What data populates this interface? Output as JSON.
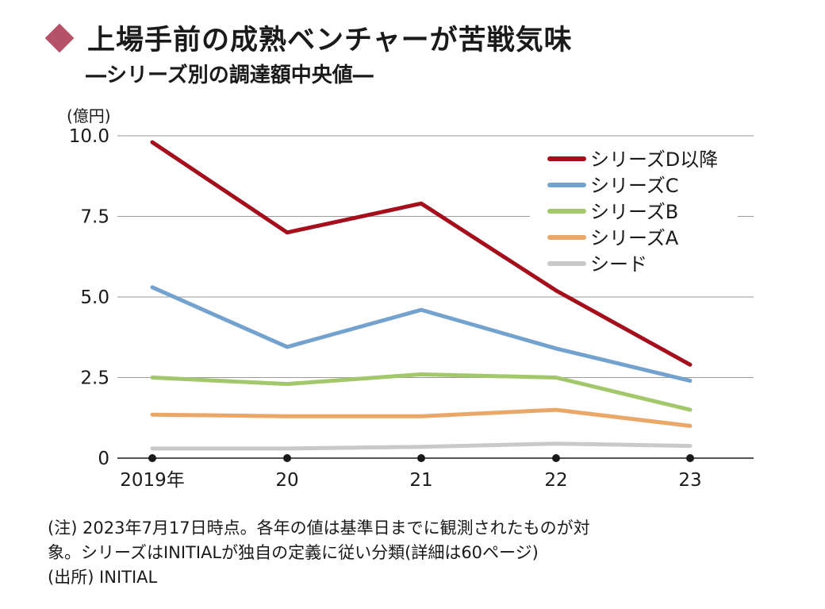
{
  "header": {
    "title": "上場手前の成熟ベンチャーが苦戦気味",
    "subtitle": "―シリーズ別の調達額中央値―"
  },
  "unit_label": "(億円)",
  "footnotes": {
    "note_line1": "(注) 2023年7月17日時点。各年の値は基準日までに観測されたものが対",
    "note_line2": "象。シリーズはINITIALが独自の定義に従い分類(詳細は60ページ)",
    "source": "(出所) INITIAL"
  },
  "chart_data": {
    "type": "line",
    "x": [
      "2019年",
      "20",
      "21",
      "22",
      "23"
    ],
    "ylim": [
      0,
      10
    ],
    "yticks": [
      "0",
      "2.5",
      "5.0",
      "7.5",
      "10.0"
    ],
    "ytick_values": [
      0,
      2.5,
      5,
      7.5,
      10
    ],
    "grid": true,
    "legend": "top-right",
    "series": [
      {
        "name": "シリーズD以降",
        "color": "#a50f1c",
        "values": [
          9.8,
          7.0,
          7.9,
          5.2,
          2.9
        ]
      },
      {
        "name": "シリーズC",
        "color": "#74a2cf",
        "values": [
          5.3,
          3.45,
          4.6,
          3.4,
          2.4
        ]
      },
      {
        "name": "シリーズB",
        "color": "#a3c76b",
        "values": [
          2.5,
          2.3,
          2.6,
          2.5,
          1.5
        ]
      },
      {
        "name": "シリーズA",
        "color": "#e9a868",
        "values": [
          1.35,
          1.3,
          1.3,
          1.5,
          1.0
        ]
      },
      {
        "name": "シード",
        "color": "#c9c9c9",
        "values": [
          0.3,
          0.3,
          0.35,
          0.45,
          0.38
        ]
      }
    ]
  }
}
